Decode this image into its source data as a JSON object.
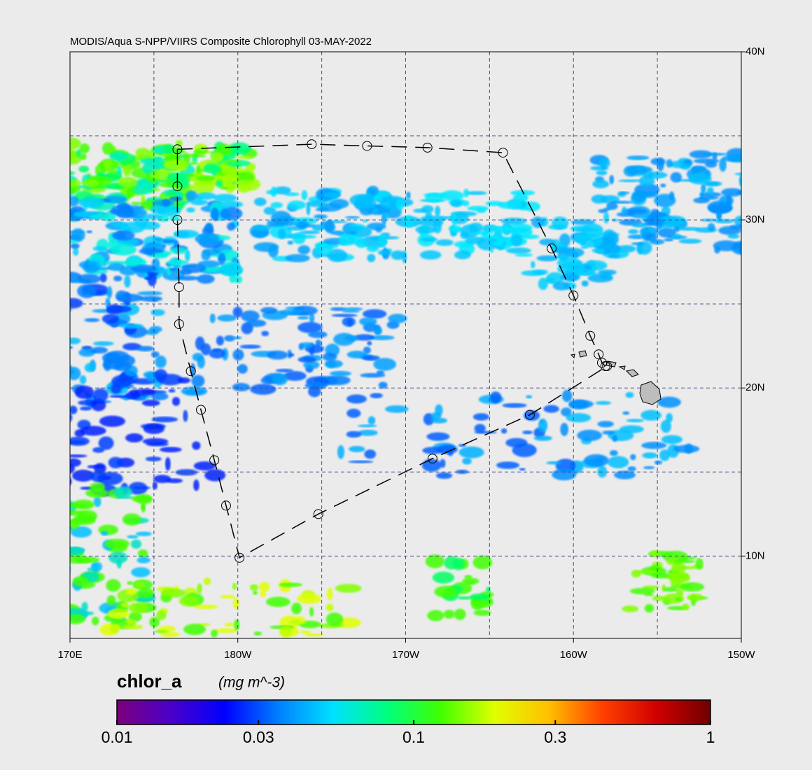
{
  "title": "MODIS/Aqua S-NPP/VIIRS Composite Chlorophyll 03-MAY-2022",
  "map": {
    "xlim": [
      170,
      210
    ],
    "ylim": [
      5.1,
      40
    ],
    "xticks": [
      {
        "value": 170,
        "label": "170E"
      },
      {
        "value": 180,
        "label": "180W"
      },
      {
        "value": 190,
        "label": "170W"
      },
      {
        "value": 200,
        "label": "160W"
      },
      {
        "value": 210,
        "label": "150W"
      }
    ],
    "yticks": [
      {
        "value": 10,
        "label": "10N"
      },
      {
        "value": 20,
        "label": "20N"
      },
      {
        "value": 30,
        "label": "30N"
      },
      {
        "value": 40,
        "label": "40N"
      }
    ],
    "grid_lon": [
      175,
      180,
      185,
      190,
      195,
      200,
      205
    ],
    "grid_lat": [
      10,
      15,
      20,
      25,
      30,
      35
    ],
    "grid_color": "#4a4a8a",
    "track": {
      "lon": [
        176.4,
        184.4,
        187.7,
        191.3,
        195.8,
        198.7,
        200.0,
        201.0,
        201.5,
        201.7,
        201.9,
        202.0,
        197.4,
        191.6,
        184.8,
        180.1,
        179.3,
        178.6,
        177.8,
        177.2,
        176.5,
        176.5,
        176.4,
        176.4,
        176.4
      ],
      "lat": [
        34.2,
        34.5,
        34.4,
        34.3,
        34.0,
        28.3,
        25.5,
        23.1,
        22.0,
        21.5,
        21.3,
        21.3,
        18.4,
        15.8,
        12.5,
        9.9,
        13.0,
        15.7,
        18.7,
        21.0,
        23.8,
        26.0,
        30.0,
        32.0,
        34.2
      ]
    }
  },
  "colorbar": {
    "label": "chlor_a",
    "units": "(mg m^-3)",
    "lim": [
      0.01,
      1
    ],
    "log": true,
    "ticks": [
      0.01,
      0.03,
      0.1,
      0.3,
      1
    ],
    "colors": [
      "#7d007d",
      "#4a00c8",
      "#0000ff",
      "#0080ff",
      "#00e0ff",
      "#00ff80",
      "#40ff00",
      "#e0ff00",
      "#ffc000",
      "#ff4000",
      "#d00000",
      "#700000"
    ]
  }
}
